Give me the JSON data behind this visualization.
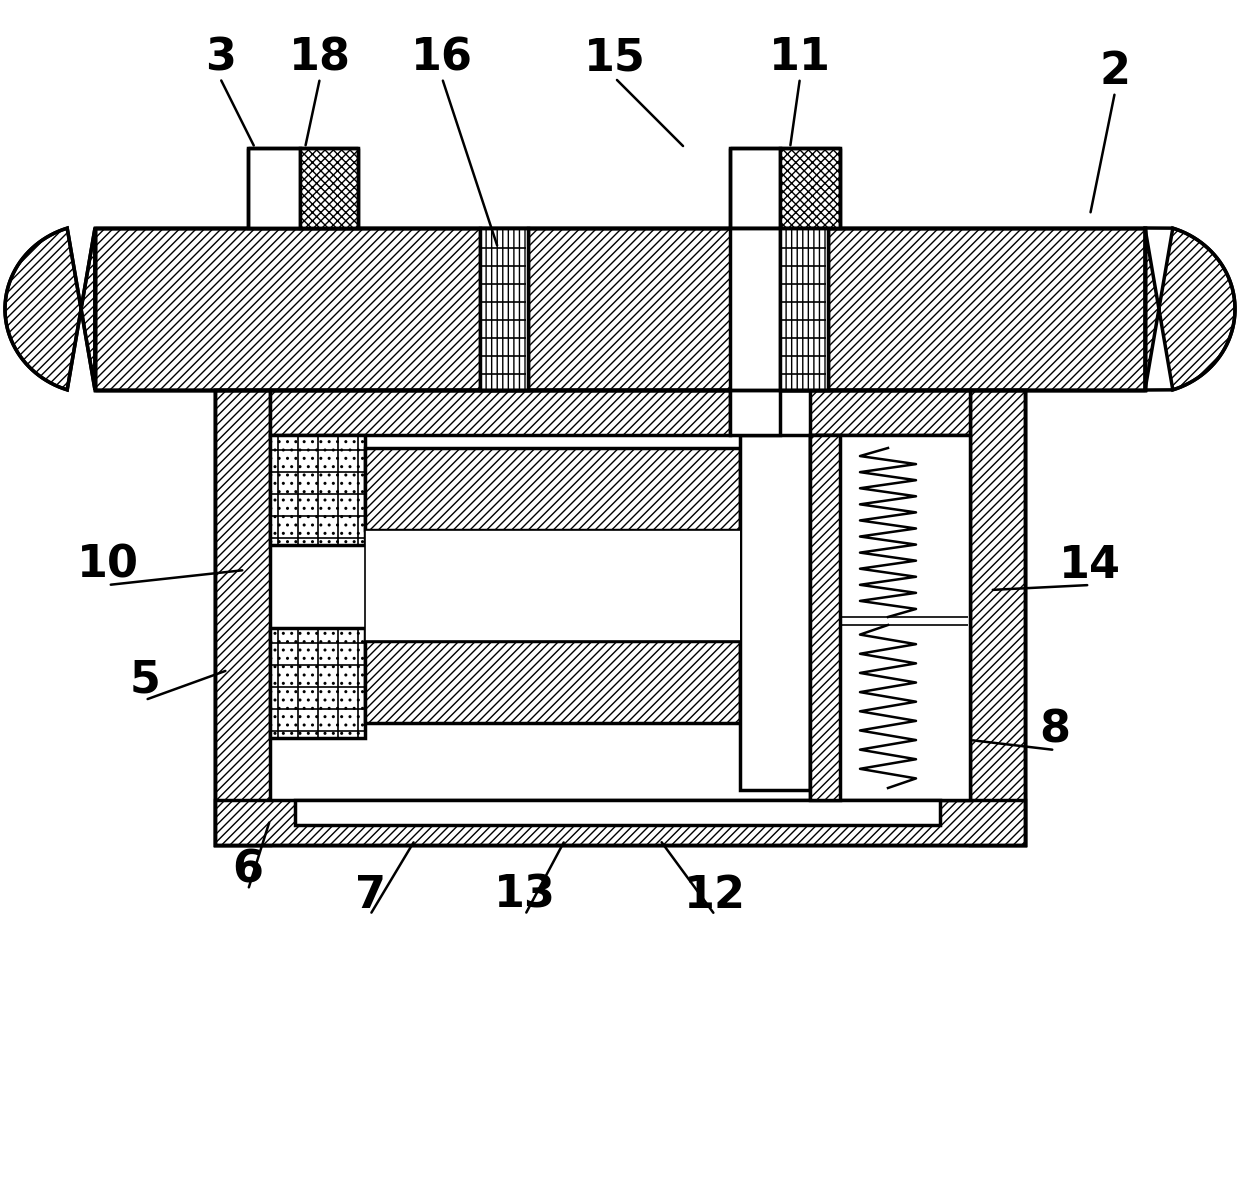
{
  "bg_color": "#ffffff",
  "lc": "#000000",
  "lw": 2.5,
  "lw_thin": 1.2,
  "figsize": [
    12.4,
    11.77
  ],
  "dpi": 100,
  "labels": [
    [
      "2",
      1115,
      72,
      1090,
      215
    ],
    [
      "3",
      220,
      58,
      255,
      148
    ],
    [
      "5",
      145,
      680,
      228,
      670
    ],
    [
      "6",
      248,
      870,
      270,
      820
    ],
    [
      "7",
      370,
      895,
      415,
      840
    ],
    [
      "8",
      1055,
      730,
      970,
      740
    ],
    [
      "10",
      108,
      565,
      245,
      570
    ],
    [
      "11",
      800,
      58,
      790,
      148
    ],
    [
      "12",
      715,
      895,
      660,
      840
    ],
    [
      "13",
      525,
      895,
      565,
      840
    ],
    [
      "14",
      1090,
      565,
      990,
      590
    ],
    [
      "15",
      615,
      58,
      685,
      148
    ],
    [
      "16",
      442,
      58,
      498,
      248
    ],
    [
      "18",
      320,
      58,
      305,
      148
    ]
  ]
}
